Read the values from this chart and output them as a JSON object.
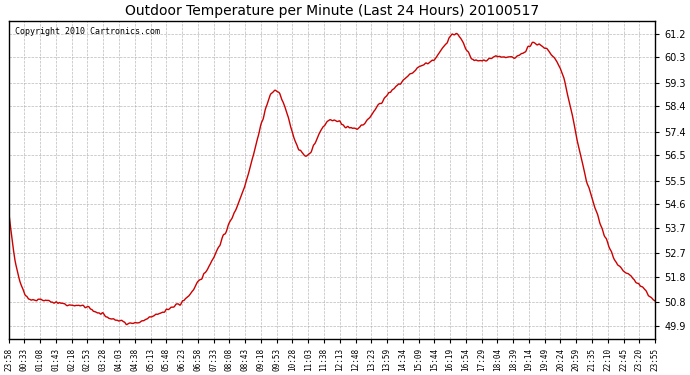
{
  "title": "Outdoor Temperature per Minute (Last 24 Hours) 20100517",
  "copyright": "Copyright 2010 Cartronics.com",
  "line_color": "#cc0000",
  "background_color": "#ffffff",
  "plot_bg_color": "#ffffff",
  "grid_color": "#aaaaaa",
  "yticks": [
    49.9,
    50.8,
    51.8,
    52.7,
    53.7,
    54.6,
    55.5,
    56.5,
    57.4,
    58.4,
    59.3,
    60.3,
    61.2
  ],
  "ylim": [
    49.4,
    61.7
  ],
  "xtick_labels": [
    "23:58",
    "00:33",
    "01:08",
    "01:43",
    "02:18",
    "02:53",
    "03:28",
    "04:03",
    "04:38",
    "05:13",
    "05:48",
    "06:23",
    "06:58",
    "07:33",
    "08:08",
    "08:43",
    "09:18",
    "09:53",
    "10:28",
    "11:03",
    "11:38",
    "12:13",
    "12:48",
    "13:23",
    "13:59",
    "14:34",
    "15:09",
    "15:44",
    "16:19",
    "16:54",
    "17:29",
    "18:04",
    "18:39",
    "19:14",
    "19:49",
    "20:24",
    "20:59",
    "21:35",
    "22:10",
    "22:45",
    "23:20",
    "23:55"
  ],
  "line_width": 1.0,
  "noise_std": 0.08,
  "key_points": [
    [
      0.0,
      54.3
    ],
    [
      0.58,
      51.2
    ],
    [
      1.17,
      50.9
    ],
    [
      1.75,
      50.8
    ],
    [
      2.33,
      50.7
    ],
    [
      2.92,
      50.6
    ],
    [
      3.5,
      50.3
    ],
    [
      4.08,
      50.1
    ],
    [
      4.67,
      50.0
    ],
    [
      5.25,
      50.2
    ],
    [
      5.83,
      50.5
    ],
    [
      6.42,
      50.8
    ],
    [
      7.0,
      51.5
    ],
    [
      7.58,
      52.5
    ],
    [
      8.17,
      53.8
    ],
    [
      8.75,
      55.3
    ],
    [
      9.33,
      57.5
    ],
    [
      9.92,
      59.0
    ],
    [
      10.5,
      57.5
    ],
    [
      11.08,
      56.5
    ],
    [
      11.67,
      57.6
    ],
    [
      12.25,
      57.8
    ],
    [
      12.83,
      57.5
    ],
    [
      13.65,
      58.3
    ],
    [
      14.23,
      59.0
    ],
    [
      14.82,
      59.5
    ],
    [
      15.4,
      60.0
    ],
    [
      15.98,
      60.4
    ],
    [
      16.57,
      61.2
    ],
    [
      17.15,
      60.3
    ],
    [
      17.73,
      60.2
    ],
    [
      18.32,
      60.3
    ],
    [
      18.9,
      60.3
    ],
    [
      19.48,
      60.8
    ],
    [
      20.07,
      60.5
    ],
    [
      20.65,
      59.3
    ],
    [
      21.23,
      56.5
    ],
    [
      21.92,
      54.0
    ],
    [
      22.5,
      52.5
    ],
    [
      23.08,
      51.8
    ],
    [
      23.67,
      51.2
    ],
    [
      24.0,
      50.8
    ]
  ]
}
